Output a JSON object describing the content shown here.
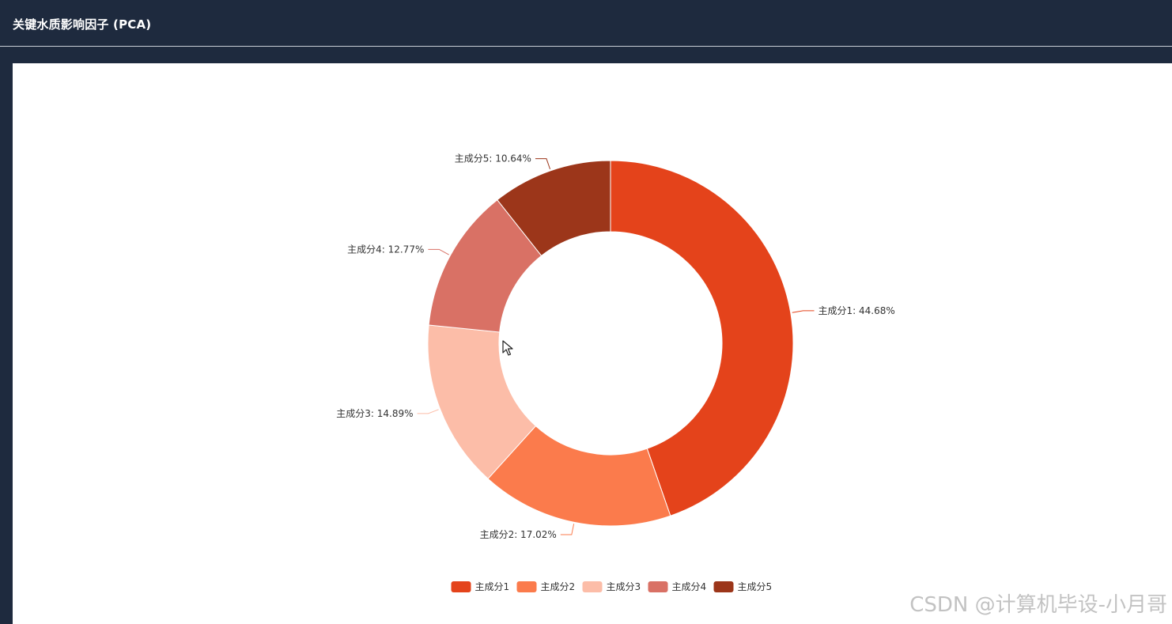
{
  "header": {
    "title": "关键水质影响因子 (PCA)"
  },
  "chart_data": {
    "type": "pie",
    "donut": true,
    "title": "",
    "categories": [
      "主成分1",
      "主成分2",
      "主成分3",
      "主成分4",
      "主成分5"
    ],
    "values": [
      44.68,
      17.02,
      14.89,
      12.77,
      10.64
    ],
    "labels": [
      "主成分1: 44.68%",
      "主成分2: 17.02%",
      "主成分3: 14.89%",
      "主成分4: 12.77%",
      "主成分5: 10.64%"
    ],
    "colors": [
      "#e4431b",
      "#fb7b4c",
      "#fcbda8",
      "#d97165",
      "#9c361a"
    ],
    "legend": {
      "position": "bottom-center",
      "entries": [
        "主成分1",
        "主成分2",
        "主成分3",
        "主成分4",
        "主成分5"
      ]
    }
  },
  "watermark": "CSDN @计算机毕设-小月哥"
}
